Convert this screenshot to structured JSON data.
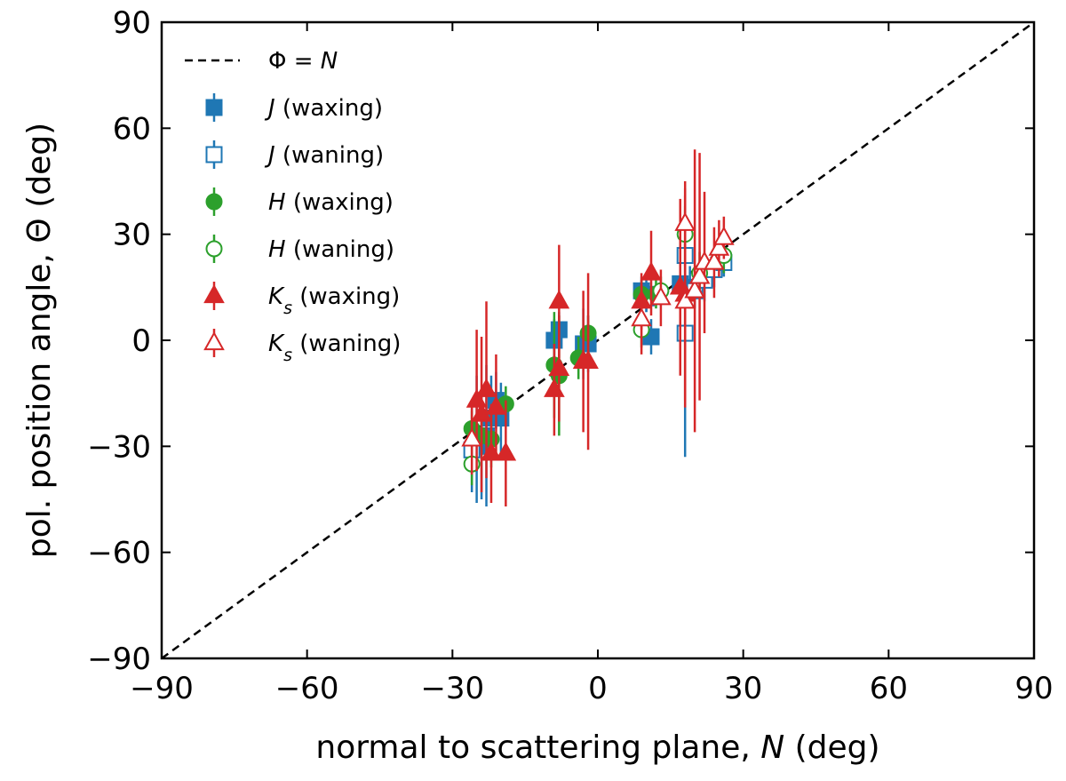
{
  "chart_data": {
    "type": "scatter",
    "xlabel_prefix": "normal to scattering plane, ",
    "xlabel_var": "N",
    "xlabel_suffix": " (deg)",
    "ylabel_prefix": "pol. position angle, ",
    "ylabel_var": "Θ",
    "ylabel_suffix": " (deg)",
    "xlim": [
      -90,
      90
    ],
    "ylim": [
      -90,
      90
    ],
    "xticks": [
      -90,
      -60,
      -30,
      0,
      30,
      60,
      90
    ],
    "yticks": [
      -90,
      -60,
      -30,
      0,
      30,
      60,
      90
    ],
    "xtick_labels": [
      "−90",
      "−60",
      "−30",
      "0",
      "30",
      "60",
      "90"
    ],
    "ytick_labels": [
      "−90",
      "−60",
      "−30",
      "0",
      "30",
      "60",
      "90"
    ],
    "reference_line": {
      "label_lhs": "Φ",
      "label_eq": " = ",
      "label_rhs": "N",
      "x": [
        -90,
        90
      ],
      "y": [
        -90,
        90
      ],
      "style": "dashed",
      "color": "#000000"
    },
    "legend_position": "upper-left",
    "series": [
      {
        "name_var": "J",
        "name_sub": "",
        "name_rest": " (waxing)",
        "marker": "square",
        "filled": true,
        "color": "#1f77b4",
        "points": [
          {
            "x": -25,
            "y": -28,
            "err": 18
          },
          {
            "x": -24,
            "y": -30,
            "err": 15
          },
          {
            "x": -23,
            "y": -27,
            "err": 20
          },
          {
            "x": -22,
            "y": -22,
            "err": 12
          },
          {
            "x": -21,
            "y": -17,
            "err": 8
          },
          {
            "x": -20,
            "y": -22,
            "err": 10
          },
          {
            "x": -9,
            "y": 0,
            "err": 6
          },
          {
            "x": -8,
            "y": 3,
            "err": 5
          },
          {
            "x": -3,
            "y": -1,
            "err": 10
          },
          {
            "x": -2,
            "y": -1,
            "err": 8
          },
          {
            "x": 9,
            "y": 14,
            "err": 4
          },
          {
            "x": 10,
            "y": 13,
            "err": 5
          },
          {
            "x": 11,
            "y": 1,
            "err": 5
          },
          {
            "x": 17,
            "y": 16,
            "err": 5
          },
          {
            "x": 19,
            "y": 15,
            "err": 6
          }
        ]
      },
      {
        "name_var": "J",
        "name_sub": "",
        "name_rest": " (waning)",
        "marker": "square",
        "filled": false,
        "color": "#1f77b4",
        "points": [
          {
            "x": -26,
            "y": -31,
            "err": 12
          },
          {
            "x": 10,
            "y": 12,
            "err": 4
          },
          {
            "x": 18,
            "y": 24,
            "err": 5
          },
          {
            "x": 18,
            "y": 2,
            "err": 35
          },
          {
            "x": 20,
            "y": 14,
            "err": 5
          },
          {
            "x": 22,
            "y": 17,
            "err": 6
          },
          {
            "x": 24,
            "y": 20,
            "err": 5
          },
          {
            "x": 26,
            "y": 22,
            "err": 4
          }
        ]
      },
      {
        "name_var": "H",
        "name_sub": "",
        "name_rest": " (waxing)",
        "marker": "circle",
        "filled": true,
        "color": "#2ca02c",
        "points": [
          {
            "x": -26,
            "y": -25,
            "err": 5
          },
          {
            "x": -24,
            "y": -27,
            "err": 6
          },
          {
            "x": -22,
            "y": -28,
            "err": 8
          },
          {
            "x": -19,
            "y": -18,
            "err": 5
          },
          {
            "x": -9,
            "y": -7,
            "err": 15
          },
          {
            "x": -8,
            "y": -10,
            "err": 17
          },
          {
            "x": -4,
            "y": -5,
            "err": 6
          },
          {
            "x": -2,
            "y": 2,
            "err": 5
          },
          {
            "x": 9,
            "y": 13,
            "err": 4
          },
          {
            "x": 12,
            "y": 13,
            "err": 4
          }
        ]
      },
      {
        "name_var": "H",
        "name_sub": "",
        "name_rest": " (waning)",
        "marker": "circle",
        "filled": false,
        "color": "#2ca02c",
        "points": [
          {
            "x": -26,
            "y": -35,
            "err": 6
          },
          {
            "x": 9,
            "y": 3,
            "err": 5
          },
          {
            "x": 13,
            "y": 14,
            "err": 4
          },
          {
            "x": 18,
            "y": 30,
            "err": 8
          },
          {
            "x": 21,
            "y": 19,
            "err": 6
          },
          {
            "x": 26,
            "y": 24,
            "err": 5
          }
        ]
      },
      {
        "name_var": "K",
        "name_sub": "s",
        "name_rest": " (waxing)",
        "marker": "triangle",
        "filled": true,
        "color": "#d62728",
        "points": [
          {
            "x": -25,
            "y": -17,
            "err": 20
          },
          {
            "x": -24,
            "y": -21,
            "err": 22
          },
          {
            "x": -23,
            "y": -14,
            "err": 25
          },
          {
            "x": -22,
            "y": -32,
            "err": 14
          },
          {
            "x": -21,
            "y": -19,
            "err": 15
          },
          {
            "x": -19,
            "y": -32,
            "err": 15
          },
          {
            "x": -9,
            "y": -14,
            "err": 13
          },
          {
            "x": -8,
            "y": -8,
            "err": 15
          },
          {
            "x": -8,
            "y": 11,
            "err": 16
          },
          {
            "x": -3,
            "y": -6,
            "err": 20
          },
          {
            "x": -2,
            "y": -6,
            "err": 25
          },
          {
            "x": 9,
            "y": 11,
            "err": 8
          },
          {
            "x": 11,
            "y": 19,
            "err": 12
          },
          {
            "x": 17,
            "y": 15,
            "err": 25
          },
          {
            "x": 18,
            "y": 13,
            "err": 30
          }
        ]
      },
      {
        "name_var": "K",
        "name_sub": "s",
        "name_rest": " (waning)",
        "marker": "triangle",
        "filled": false,
        "color": "#d62728",
        "points": [
          {
            "x": -26,
            "y": -28,
            "err": 10
          },
          {
            "x": 9,
            "y": 6,
            "err": 10
          },
          {
            "x": 13,
            "y": 12,
            "err": 8
          },
          {
            "x": 18,
            "y": 33,
            "err": 12
          },
          {
            "x": 18,
            "y": 11,
            "err": 30
          },
          {
            "x": 20,
            "y": 14,
            "err": 40
          },
          {
            "x": 21,
            "y": 18,
            "err": 35
          },
          {
            "x": 22,
            "y": 22,
            "err": 20
          },
          {
            "x": 24,
            "y": 22,
            "err": 10
          },
          {
            "x": 25,
            "y": 26,
            "err": 8
          },
          {
            "x": 26,
            "y": 29,
            "err": 6
          }
        ]
      }
    ]
  }
}
